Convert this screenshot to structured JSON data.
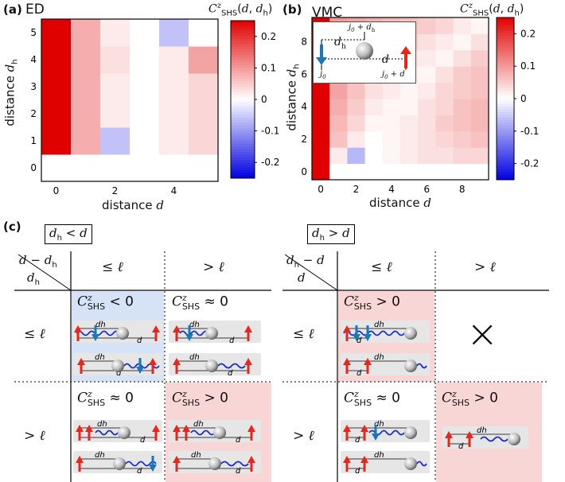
{
  "panel_a": {
    "label": "(a)",
    "method": "ED",
    "colorbar_title": "C^z_SHS(d, d_h)",
    "colorbar_ticks": [
      "0.2",
      "0.1",
      "0",
      "-0.1",
      "-0.2"
    ],
    "xlabel": "distance d",
    "ylabel": "distance d_h",
    "xticks": [
      "0",
      "2",
      "4"
    ],
    "yticks": [
      "0",
      "1",
      "2",
      "3",
      "4",
      "5"
    ]
  },
  "panel_b": {
    "label": "(b)",
    "method": "VMC",
    "colorbar_title": "C^z_SHS(d, d_h)",
    "colorbar_ticks": [
      "0.2",
      "0.1",
      "0",
      "-0.1",
      "-0.2"
    ],
    "xlabel": "distance d",
    "ylabel": "distance d_h",
    "xticks": [
      "0",
      "2",
      "4",
      "6",
      "8"
    ],
    "yticks": [
      "0",
      "2",
      "4",
      "6",
      "8"
    ],
    "inset": {
      "dh": "d_h",
      "d": "d",
      "j0": "j_0",
      "j0_dh": "j_0 + d_h",
      "j0_d": "j_0 + d"
    }
  },
  "chart_data": [
    {
      "type": "heatmap",
      "title": "ED",
      "xlabel": "distance d",
      "ylabel": "distance d_h",
      "x": [
        0,
        1,
        2,
        3,
        4,
        5
      ],
      "y": [
        0,
        1,
        2,
        3,
        4,
        5
      ],
      "vlim": [
        -0.25,
        0.25
      ],
      "values": [
        [
          0.0,
          0.0,
          0.0,
          0.0,
          0.0,
          0.0
        ],
        [
          0.25,
          0.08,
          -0.06,
          0.0,
          0.02,
          0.04
        ],
        [
          0.25,
          0.08,
          0.02,
          0.0,
          0.02,
          0.04
        ],
        [
          0.25,
          0.08,
          0.02,
          0.0,
          0.02,
          0.04
        ],
        [
          0.25,
          0.08,
          0.03,
          0.0,
          0.02,
          0.09
        ],
        [
          0.25,
          0.08,
          0.02,
          0.0,
          -0.06,
          0.0
        ]
      ]
    },
    {
      "type": "heatmap",
      "title": "VMC",
      "xlabel": "distance d",
      "ylabel": "distance d_h",
      "x": [
        0,
        1,
        2,
        3,
        4,
        5,
        6,
        7,
        8,
        9
      ],
      "y": [
        0,
        1,
        2,
        3,
        4,
        5,
        6,
        7,
        8,
        9
      ],
      "vlim": [
        -0.25,
        0.25
      ],
      "values": [
        [
          0.25,
          0.0,
          0.0,
          0.0,
          0.0,
          0.0,
          0.0,
          0.0,
          0.0,
          0.0
        ],
        [
          0.25,
          0.02,
          -0.07,
          0.0,
          0.01,
          0.02,
          0.03,
          0.03,
          0.04,
          0.04
        ],
        [
          0.25,
          0.06,
          0.02,
          0.0,
          0.01,
          0.02,
          0.03,
          0.04,
          0.05,
          0.06
        ],
        [
          0.25,
          0.07,
          0.04,
          0.01,
          0.01,
          0.02,
          0.03,
          0.05,
          0.06,
          0.07
        ],
        [
          0.25,
          0.08,
          0.05,
          0.02,
          0.01,
          0.01,
          0.03,
          0.04,
          0.06,
          0.07
        ],
        [
          0.25,
          0.09,
          0.06,
          0.03,
          0.02,
          0.01,
          0.02,
          0.04,
          0.05,
          0.06
        ],
        [
          0.25,
          0.09,
          0.07,
          0.05,
          0.03,
          0.02,
          0.01,
          0.03,
          0.05,
          0.06
        ],
        [
          0.25,
          0.1,
          0.08,
          0.06,
          0.05,
          0.03,
          0.02,
          0.01,
          0.03,
          0.05
        ],
        [
          0.25,
          0.1,
          0.08,
          0.07,
          0.06,
          0.05,
          0.03,
          0.02,
          0.01,
          0.03
        ],
        [
          0.25,
          0.1,
          0.09,
          0.08,
          0.07,
          0.06,
          0.05,
          0.04,
          0.02,
          0.01
        ]
      ]
    }
  ],
  "panel_c": {
    "label": "(c)",
    "left_title": "d_h < d",
    "right_title": "d_h > d",
    "left_corner_top": "d − d_h",
    "left_corner_bottom": "d_h",
    "right_corner_top": "d_h − d",
    "right_corner_bottom": "d",
    "col_le": "≤ ℓ",
    "col_gt": "> ℓ",
    "row_le": "≤ ℓ",
    "row_gt": "> ℓ",
    "cells": {
      "L11": "C^z_SHS < 0",
      "L12": "C^z_SHS ≈ 0",
      "L21": "C^z_SHS ≈ 0",
      "L22": "C^z_SHS > 0",
      "R11": "C^z_SHS > 0",
      "R12": "×",
      "R21": "C^z_SHS ≈ 0",
      "R22": "C^z_SHS > 0"
    },
    "diagram_labels": {
      "dh": "d_h",
      "d": "d"
    },
    "colors": {
      "blue_bg": "#d6e3f6",
      "red_bg": "#f9d6d6",
      "spin_up": "#e8261b",
      "spin_down": "#1878b8",
      "string": "#1a2cc7"
    }
  }
}
